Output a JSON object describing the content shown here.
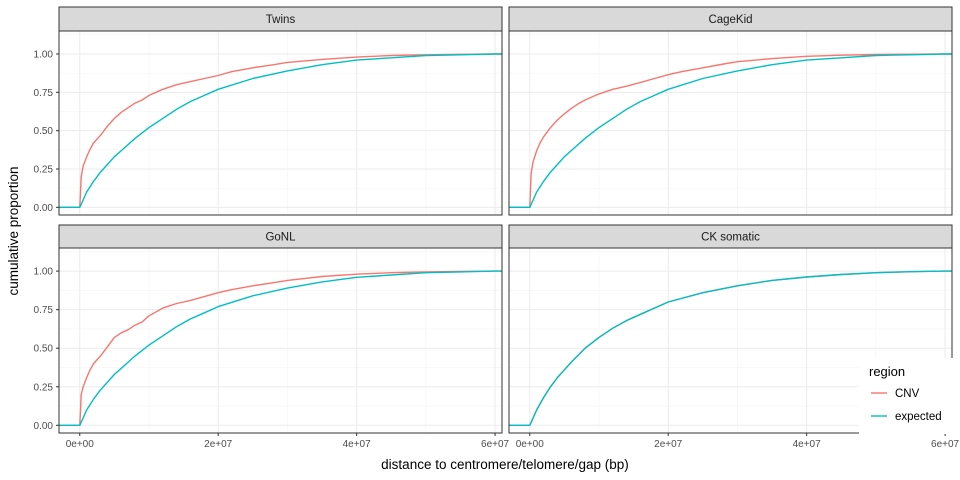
{
  "chart_data": {
    "type": "line",
    "facets": [
      {
        "label": "Twins",
        "series": [
          {
            "name": "CNV",
            "x": [
              -3000000,
              0,
              200000,
              500000,
              1000000,
              1500000,
              2000000,
              3000000,
              4000000,
              5000000,
              6000000,
              7000000,
              8000000,
              9000000,
              10000000,
              12000000,
              14000000,
              16000000,
              18000000,
              20000000,
              22000000,
              25000000,
              28000000,
              30000000,
              35000000,
              40000000,
              45000000,
              50000000,
              55000000,
              60000000,
              61000000
            ],
            "y": [
              0,
              0,
              0.2,
              0.27,
              0.33,
              0.38,
              0.42,
              0.47,
              0.53,
              0.58,
              0.62,
              0.65,
              0.68,
              0.7,
              0.73,
              0.77,
              0.8,
              0.82,
              0.84,
              0.86,
              0.885,
              0.91,
              0.93,
              0.945,
              0.965,
              0.98,
              0.99,
              0.995,
              0.998,
              1.0,
              1.0
            ]
          },
          {
            "name": "expected",
            "x": [
              -3000000,
              0,
              1000000,
              2000000,
              3000000,
              4000000,
              5000000,
              6000000,
              8000000,
              10000000,
              12000000,
              14000000,
              16000000,
              18000000,
              20000000,
              25000000,
              30000000,
              35000000,
              40000000,
              45000000,
              50000000,
              55000000,
              60000000,
              61000000
            ],
            "y": [
              0,
              0,
              0.1,
              0.17,
              0.23,
              0.28,
              0.33,
              0.37,
              0.45,
              0.52,
              0.58,
              0.64,
              0.69,
              0.73,
              0.77,
              0.84,
              0.89,
              0.93,
              0.96,
              0.975,
              0.99,
              0.995,
              1.0,
              1.0
            ]
          }
        ]
      },
      {
        "label": "CageKid",
        "series": [
          {
            "name": "CNV",
            "x": [
              -3000000,
              0,
              200000,
              500000,
              1000000,
              1500000,
              2000000,
              3000000,
              4000000,
              5000000,
              6000000,
              7000000,
              8000000,
              9000000,
              10000000,
              12000000,
              14000000,
              16000000,
              18000000,
              20000000,
              22000000,
              25000000,
              28000000,
              30000000,
              35000000,
              40000000,
              45000000,
              50000000,
              55000000,
              60000000,
              61000000
            ],
            "y": [
              0,
              0,
              0.22,
              0.3,
              0.37,
              0.42,
              0.46,
              0.52,
              0.57,
              0.61,
              0.645,
              0.675,
              0.7,
              0.72,
              0.74,
              0.77,
              0.79,
              0.815,
              0.84,
              0.865,
              0.885,
              0.91,
              0.935,
              0.95,
              0.97,
              0.985,
              0.992,
              0.997,
              0.999,
              1.0,
              1.0
            ]
          },
          {
            "name": "expected",
            "x": [
              -3000000,
              0,
              1000000,
              2000000,
              3000000,
              4000000,
              5000000,
              6000000,
              8000000,
              10000000,
              12000000,
              14000000,
              16000000,
              18000000,
              20000000,
              25000000,
              30000000,
              35000000,
              40000000,
              45000000,
              50000000,
              55000000,
              60000000,
              61000000
            ],
            "y": [
              0,
              0,
              0.1,
              0.17,
              0.23,
              0.28,
              0.33,
              0.37,
              0.45,
              0.52,
              0.58,
              0.64,
              0.69,
              0.73,
              0.77,
              0.84,
              0.89,
              0.93,
              0.96,
              0.975,
              0.99,
              0.995,
              1.0,
              1.0
            ]
          }
        ]
      },
      {
        "label": "GoNL",
        "series": [
          {
            "name": "CNV",
            "x": [
              -3000000,
              0,
              200000,
              500000,
              1000000,
              1500000,
              2000000,
              3000000,
              4000000,
              5000000,
              6000000,
              7000000,
              8000000,
              9000000,
              10000000,
              12000000,
              14000000,
              16000000,
              18000000,
              20000000,
              22000000,
              25000000,
              28000000,
              30000000,
              35000000,
              40000000,
              45000000,
              50000000,
              55000000,
              60000000,
              61000000
            ],
            "y": [
              0,
              0,
              0.2,
              0.25,
              0.31,
              0.36,
              0.4,
              0.45,
              0.51,
              0.57,
              0.6,
              0.62,
              0.65,
              0.67,
              0.71,
              0.76,
              0.79,
              0.81,
              0.835,
              0.86,
              0.88,
              0.905,
              0.925,
              0.94,
              0.965,
              0.98,
              0.99,
              0.995,
              0.998,
              1.0,
              1.0
            ]
          },
          {
            "name": "expected",
            "x": [
              -3000000,
              0,
              1000000,
              2000000,
              3000000,
              4000000,
              5000000,
              6000000,
              8000000,
              10000000,
              12000000,
              14000000,
              16000000,
              18000000,
              20000000,
              25000000,
              30000000,
              35000000,
              40000000,
              45000000,
              50000000,
              55000000,
              60000000,
              61000000
            ],
            "y": [
              0,
              0,
              0.1,
              0.17,
              0.23,
              0.28,
              0.33,
              0.37,
              0.45,
              0.52,
              0.58,
              0.64,
              0.69,
              0.73,
              0.77,
              0.84,
              0.89,
              0.93,
              0.96,
              0.975,
              0.99,
              0.995,
              1.0,
              1.0
            ]
          }
        ]
      },
      {
        "label": "CK somatic",
        "series": [
          {
            "name": "CNV",
            "x": [
              -3000000,
              0,
              1000000,
              2000000,
              3000000,
              4000000,
              5000000,
              6000000,
              8000000,
              10000000,
              12000000,
              14000000,
              16000000,
              18000000,
              20000000,
              25000000,
              30000000,
              35000000,
              40000000,
              45000000,
              50000000,
              55000000,
              60000000,
              61000000
            ],
            "y": [
              0,
              0,
              0.1,
              0.18,
              0.25,
              0.31,
              0.36,
              0.41,
              0.5,
              0.57,
              0.63,
              0.68,
              0.72,
              0.76,
              0.8,
              0.86,
              0.905,
              0.94,
              0.962,
              0.978,
              0.99,
              0.996,
              1.0,
              1.0
            ]
          },
          {
            "name": "expected",
            "x": [
              -3000000,
              0,
              1000000,
              2000000,
              3000000,
              4000000,
              5000000,
              6000000,
              8000000,
              10000000,
              12000000,
              14000000,
              16000000,
              18000000,
              20000000,
              25000000,
              30000000,
              35000000,
              40000000,
              45000000,
              50000000,
              55000000,
              60000000,
              61000000
            ],
            "y": [
              0,
              0,
              0.1,
              0.18,
              0.25,
              0.31,
              0.36,
              0.41,
              0.5,
              0.57,
              0.63,
              0.68,
              0.72,
              0.76,
              0.8,
              0.86,
              0.905,
              0.94,
              0.962,
              0.978,
              0.99,
              0.996,
              1.0,
              1.0
            ]
          }
        ]
      }
    ],
    "xlabel": "distance to centromere/telomere/gap (bp)",
    "ylabel": "cumulative proportion",
    "xlim": [
      -3000000,
      61000000
    ],
    "ylim": [
      -0.05,
      1.15
    ],
    "x_ticks": [
      0,
      20000000,
      40000000,
      60000000
    ],
    "x_tick_labels": [
      "0e+00",
      "2e+07",
      "4e+07",
      "6e+07"
    ],
    "y_ticks": [
      0,
      0.25,
      0.5,
      0.75,
      1.0
    ],
    "y_tick_labels": [
      "0.00",
      "0.25",
      "0.50",
      "0.75",
      "1.00"
    ],
    "grid": true,
    "legend": {
      "title": "region",
      "position": "bottom-right",
      "entries": [
        "CNV",
        "expected"
      ]
    },
    "colors": {
      "CNV": "#f8766d",
      "expected": "#00bfc4"
    }
  }
}
